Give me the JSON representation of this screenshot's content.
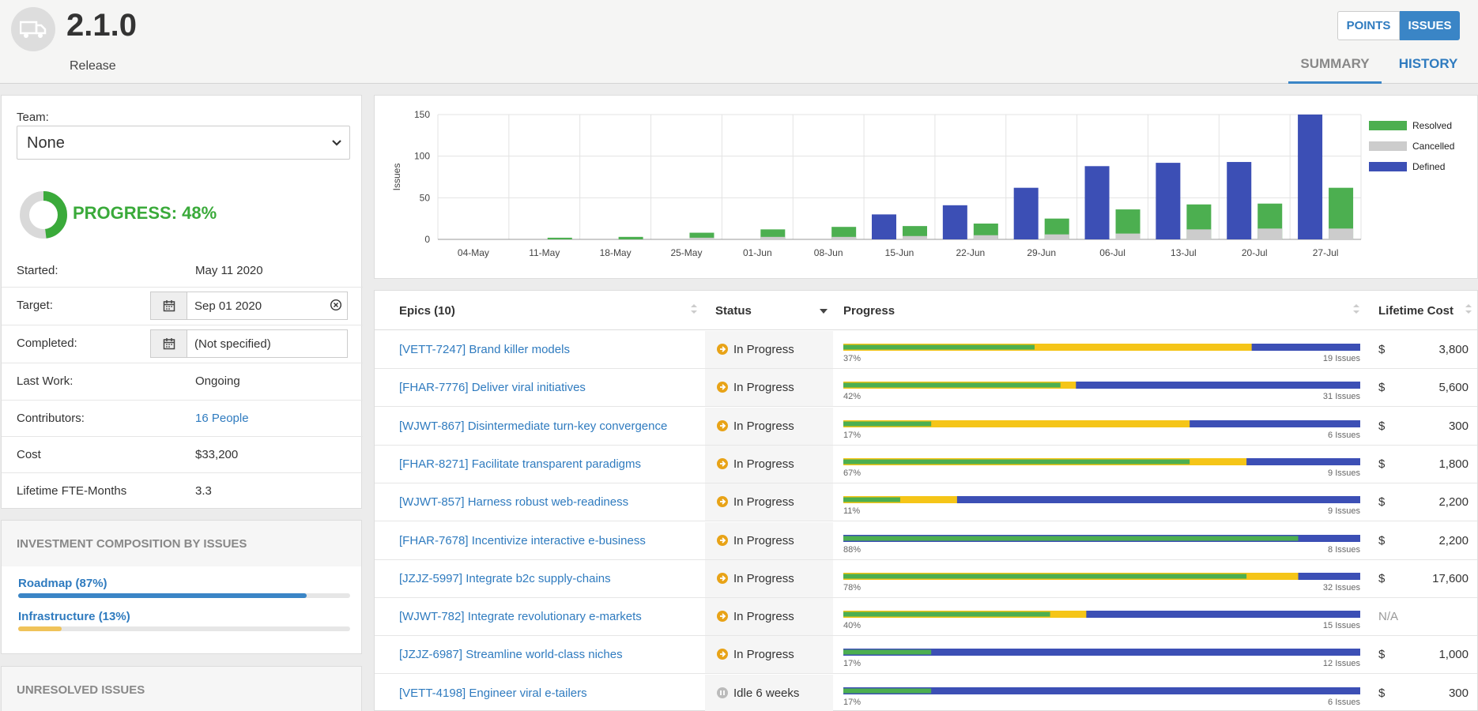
{
  "header": {
    "icon": "truck-icon",
    "title": "2.1.0",
    "subtitle": "Release",
    "toggle": {
      "points": "POINTS",
      "issues": "ISSUES",
      "selected": "issues"
    },
    "tabs": [
      {
        "label": "SUMMARY",
        "active": true
      },
      {
        "label": "HISTORY",
        "active": false
      }
    ]
  },
  "details": {
    "team_label": "Team:",
    "team_value": "None",
    "progress_text": "PROGRESS: 48%",
    "progress_value": 0.48,
    "rows": {
      "started": {
        "label": "Started:",
        "value": "May 11 2020"
      },
      "target": {
        "label": "Target:",
        "value": "Sep 01 2020"
      },
      "completed": {
        "label": "Completed:",
        "value": "(Not specified)"
      },
      "last_work": {
        "label": "Last Work:",
        "value": "Ongoing"
      },
      "contributors": {
        "label": "Contributors:",
        "value": "16 People"
      },
      "cost": {
        "label": "Cost",
        "value": "$33,200"
      },
      "fte": {
        "label": "Lifetime FTE-Months",
        "value": "3.3"
      }
    }
  },
  "investment": {
    "title": "INVESTMENT COMPOSITION BY ISSUES",
    "items": [
      {
        "label": "Roadmap (87%)",
        "value": 0.87,
        "color": "#3a85c6"
      },
      {
        "label": "Infrastructure (13%)",
        "value": 0.13,
        "color": "#f0c35a"
      }
    ]
  },
  "unresolved": {
    "title": "UNRESOLVED ISSUES"
  },
  "chart_data": {
    "type": "bar",
    "ylabel": "Issues",
    "ylim": [
      0,
      150
    ],
    "yticks": [
      0,
      50,
      100,
      150
    ],
    "categories": [
      "04-May",
      "11-May",
      "18-May",
      "25-May",
      "01-Jun",
      "08-Jun",
      "15-Jun",
      "22-Jun",
      "29-Jun",
      "06-Jul",
      "13-Jul",
      "20-Jul",
      "27-Jul"
    ],
    "series": [
      {
        "name": "Defined",
        "color": "#3c4fb5",
        "values": [
          0,
          0,
          0,
          0,
          0,
          0,
          30,
          41,
          62,
          88,
          92,
          93,
          150
        ]
      },
      {
        "name": "Resolved",
        "color": "#4caf50",
        "values": [
          0,
          2,
          3,
          8,
          12,
          15,
          16,
          19,
          25,
          36,
          42,
          43,
          62
        ]
      },
      {
        "name": "Cancelled",
        "color": "#cccccc",
        "values": [
          0,
          0,
          0,
          2,
          3,
          3,
          4,
          5,
          6,
          7,
          12,
          13,
          13
        ]
      }
    ],
    "legend": [
      {
        "name": "Resolved",
        "color": "#4caf50"
      },
      {
        "name": "Cancelled",
        "color": "#cccccc"
      },
      {
        "name": "Defined",
        "color": "#3c4fb5"
      }
    ],
    "legend_position": "right",
    "grid": true
  },
  "table": {
    "headers": {
      "epics": "Epics (10)",
      "status": "Status",
      "progress": "Progress",
      "cost": "Lifetime Cost"
    },
    "rows": [
      {
        "key": "[VETT-7247]",
        "name": "Brand killer models",
        "status": "In Progress",
        "status_icon": "arrow-circle-icon",
        "pct": "37%",
        "issues": "19 Issues",
        "green": 0.37,
        "yellow": 0.79,
        "cur": "$",
        "cost": "3,800"
      },
      {
        "key": "[FHAR-7776]",
        "name": "Deliver viral initiatives",
        "status": "In Progress",
        "status_icon": "arrow-circle-icon",
        "pct": "42%",
        "issues": "31 Issues",
        "green": 0.42,
        "yellow": 0.45,
        "cur": "$",
        "cost": "5,600"
      },
      {
        "key": "[WJWT-867]",
        "name": "Disintermediate turn-key convergence",
        "status": "In Progress",
        "status_icon": "arrow-circle-icon",
        "pct": "17%",
        "issues": "6 Issues",
        "green": 0.17,
        "yellow": 0.67,
        "cur": "$",
        "cost": "300"
      },
      {
        "key": "[FHAR-8271]",
        "name": "Facilitate transparent paradigms",
        "status": "In Progress",
        "status_icon": "arrow-circle-icon",
        "pct": "67%",
        "issues": "9 Issues",
        "green": 0.67,
        "yellow": 0.78,
        "cur": "$",
        "cost": "1,800"
      },
      {
        "key": "[WJWT-857]",
        "name": "Harness robust web-readiness",
        "status": "In Progress",
        "status_icon": "arrow-circle-icon",
        "pct": "11%",
        "issues": "9 Issues",
        "green": 0.11,
        "yellow": 0.22,
        "cur": "$",
        "cost": "2,200"
      },
      {
        "key": "[FHAR-7678]",
        "name": "Incentivize interactive e-business",
        "status": "In Progress",
        "status_icon": "arrow-circle-icon",
        "pct": "88%",
        "issues": "8 Issues",
        "green": 0.88,
        "yellow": 0.88,
        "cur": "$",
        "cost": "2,200"
      },
      {
        "key": "[JZJZ-5997]",
        "name": "Integrate b2c supply-chains",
        "status": "In Progress",
        "status_icon": "arrow-circle-icon",
        "pct": "78%",
        "issues": "32 Issues",
        "green": 0.78,
        "yellow": 0.88,
        "cur": "$",
        "cost": "17,600"
      },
      {
        "key": "[WJWT-782]",
        "name": "Integrate revolutionary e-markets",
        "status": "In Progress",
        "status_icon": "arrow-circle-icon",
        "pct": "40%",
        "issues": "15 Issues",
        "green": 0.4,
        "yellow": 0.47,
        "cur": "",
        "cost": "N/A"
      },
      {
        "key": "[JZJZ-6987]",
        "name": "Streamline world-class niches",
        "status": "In Progress",
        "status_icon": "arrow-circle-icon",
        "pct": "17%",
        "issues": "12 Issues",
        "green": 0.17,
        "yellow": 0.17,
        "cur": "$",
        "cost": "1,000"
      },
      {
        "key": "[VETT-4198]",
        "name": "Engineer viral e-tailers",
        "status": "Idle 6 weeks",
        "status_icon": "pause-circle-icon",
        "pct": "17%",
        "issues": "6 Issues",
        "green": 0.17,
        "yellow": 0.17,
        "cur": "$",
        "cost": "300"
      }
    ]
  }
}
